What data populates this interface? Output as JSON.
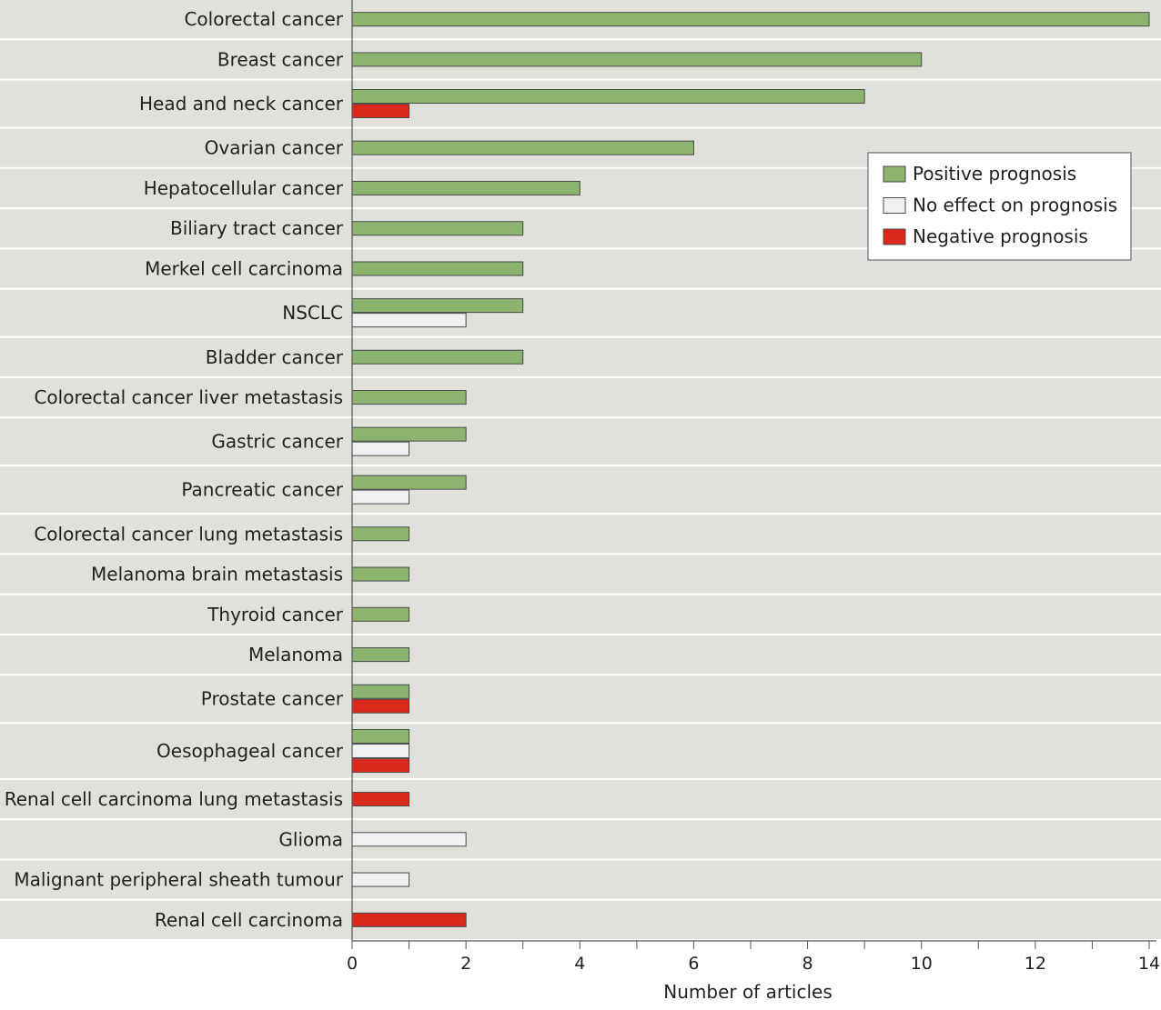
{
  "chart_data": {
    "type": "bar",
    "orientation": "horizontal",
    "xlabel": "Number of articles",
    "xlim": [
      0,
      14
    ],
    "xticks": [
      "0",
      "2",
      "4",
      "6",
      "8",
      "10",
      "12",
      "14"
    ],
    "legend_position": "top-right",
    "categories": [
      "Colorectal cancer",
      "Breast cancer",
      "Head and neck cancer",
      "Ovarian cancer",
      "Hepatocellular cancer",
      "Biliary tract cancer",
      "Merkel cell carcinoma",
      "NSCLC",
      "Bladder cancer",
      "Colorectal cancer liver metastasis",
      "Gastric cancer",
      "Pancreatic cancer",
      "Colorectal cancer lung metastasis",
      "Melanoma brain metastasis",
      "Thyroid cancer",
      "Melanoma",
      "Prostate cancer",
      "Oesophageal cancer",
      "Renal cell carcinoma lung metastasis",
      "Glioma",
      "Malignant peripheral sheath tumour",
      "Renal cell carcinoma"
    ],
    "series": [
      {
        "name": "Positive prognosis",
        "color": "#8db46f",
        "values": [
          14,
          10,
          9,
          6,
          4,
          3,
          3,
          3,
          3,
          2,
          2,
          2,
          1,
          1,
          1,
          1,
          1,
          1,
          0,
          0,
          0,
          0
        ]
      },
      {
        "name": "No effect on prognosis",
        "color": "#eef0f2",
        "values": [
          0,
          0,
          0,
          0,
          0,
          0,
          0,
          2,
          0,
          0,
          1,
          1,
          0,
          0,
          0,
          0,
          0,
          1,
          0,
          2,
          1,
          0
        ]
      },
      {
        "name": "Negative prognosis",
        "color": "#d9291c",
        "values": [
          0,
          0,
          1,
          0,
          0,
          0,
          0,
          0,
          0,
          0,
          0,
          0,
          0,
          0,
          0,
          0,
          1,
          1,
          1,
          0,
          0,
          2
        ]
      }
    ],
    "grid": false,
    "colors": {
      "row_background": "#dfe1da",
      "row_separator": "#ffffff",
      "bar_stroke": "#4a4a4a",
      "axis": "#555555"
    }
  }
}
